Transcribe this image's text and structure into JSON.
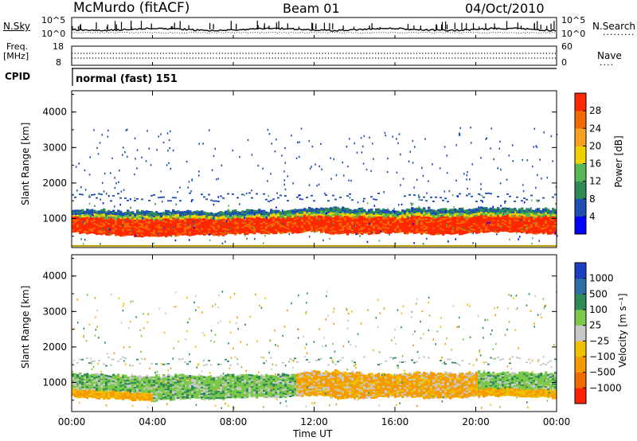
{
  "header": {
    "station": "McMurdo (fitACF)",
    "beam": "Beam 01",
    "date": "04/Oct/2010"
  },
  "noise_panel": {
    "left_label": "N.Sky",
    "right_label": "N.Search",
    "left_ticks": [
      "10^5",
      "10^0"
    ],
    "right_ticks": [
      "10^5",
      "10^0"
    ]
  },
  "freq_panel": {
    "left_label_line1": "Freq.",
    "left_label_line2": "[MHz]",
    "right_label": "Nave",
    "left_ticks": [
      "18",
      "8"
    ],
    "right_ticks": [
      "60",
      "0"
    ]
  },
  "cpid_panel": {
    "label": "CPID",
    "mode_text": "normal (fast) 151"
  },
  "x_axis": {
    "label": "Time UT",
    "ticks": [
      "00:00",
      "04:00",
      "08:00",
      "12:00",
      "16:00",
      "20:00",
      "00:00"
    ]
  },
  "chart_data": [
    {
      "type": "heatmap",
      "title": "",
      "xlabel": "Time UT",
      "ylabel": "Slant Range [km]",
      "xlim_hours": [
        0,
        24
      ],
      "ylim": [
        180,
        4600
      ],
      "yticks": [
        1000,
        2000,
        3000,
        4000
      ],
      "colorbar_label": "Power [dB]",
      "colorbar_ticks": [
        "4",
        "8",
        "12",
        "16",
        "20",
        "24",
        "28"
      ],
      "colorbar_colors": [
        "#0000ff",
        "#1f4fb0",
        "#2e8b57",
        "#58b858",
        "#f0d000",
        "#f8a020",
        "#f46a00",
        "#ff2800"
      ],
      "band_lower_km": [
        600,
        560,
        540,
        500,
        480,
        520,
        540,
        520,
        560,
        580,
        580,
        600,
        640,
        560,
        560,
        580,
        600,
        580,
        540,
        560,
        600,
        620,
        600,
        580,
        560
      ],
      "band_upper_km": [
        1220,
        1220,
        1200,
        1180,
        1160,
        1200,
        1180,
        1160,
        1200,
        1220,
        1200,
        1240,
        1280,
        1300,
        1260,
        1220,
        1200,
        1280,
        1240,
        1240,
        1280,
        1260,
        1260,
        1240,
        1260
      ]
    },
    {
      "type": "heatmap",
      "title": "",
      "xlabel": "Time UT",
      "ylabel": "Slant Range [km]",
      "xlim_hours": [
        0,
        24
      ],
      "ylim": [
        180,
        4600
      ],
      "yticks": [
        1000,
        2000,
        3000,
        4000
      ],
      "colorbar_label": "Velocity [m s⁻¹]",
      "colorbar_ticks": [
        "1000",
        "500",
        "100",
        "25",
        "−25",
        "−100",
        "−500",
        "−1000"
      ],
      "colorbar_colors": [
        "#1a3fc0",
        "#2e6ea8",
        "#2e8b57",
        "#7bc84a",
        "#c8c8c8",
        "#f0c000",
        "#f59a00",
        "#f06a00",
        "#ff2000"
      ]
    }
  ]
}
